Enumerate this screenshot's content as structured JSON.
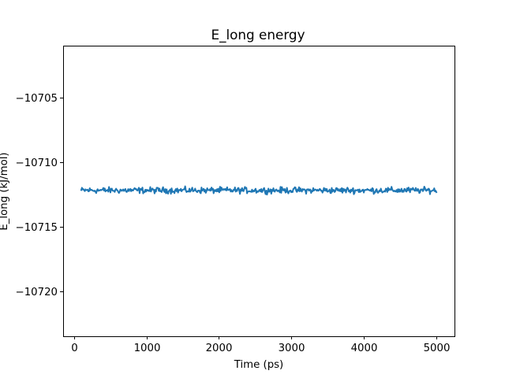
{
  "chart_data": {
    "type": "line",
    "title": "E_long energy",
    "xlabel": "Time (ps)",
    "ylabel": "E_long (kJ/mol)",
    "xlim": [
      -150,
      5250
    ],
    "ylim": [
      -10723.5,
      -10701
    ],
    "xticks": [
      0,
      1000,
      2000,
      3000,
      4000,
      5000
    ],
    "xtick_labels": [
      "0",
      "1000",
      "2000",
      "3000",
      "4000",
      "5000"
    ],
    "yticks": [
      -10705,
      -10710,
      -10715,
      -10720
    ],
    "ytick_labels": [
      "−10705",
      "−10710",
      "−10715",
      "−10720"
    ],
    "grid": false,
    "series": [
      {
        "name": "E_long",
        "color": "#1f77b4",
        "x_start": 100,
        "x_end": 5000,
        "mean": -10712.2,
        "noise_amplitude": 0.35,
        "points": 500
      }
    ]
  }
}
